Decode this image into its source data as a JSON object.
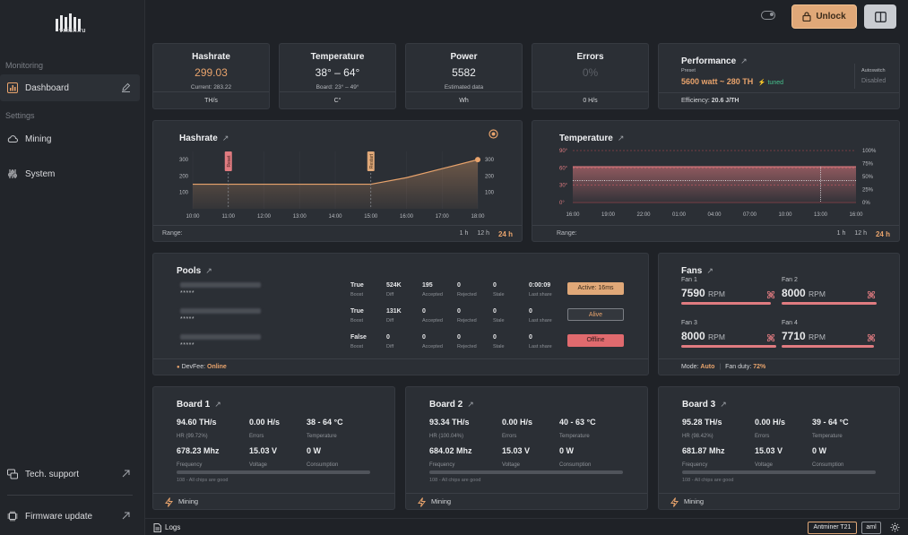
{
  "brand": {
    "name": "vnish.ru"
  },
  "sidebar": {
    "section_monitoring": "Monitoring",
    "section_settings": "Settings",
    "items": [
      {
        "label": "Dashboard",
        "icon": "chart-icon"
      },
      {
        "label": "Mining",
        "icon": "cloud-icon"
      },
      {
        "label": "System",
        "icon": "sliders-icon"
      }
    ],
    "bottom": [
      {
        "label": "Tech. support",
        "icon": "support-icon"
      },
      {
        "label": "Firmware update",
        "icon": "chip-icon"
      }
    ]
  },
  "topbar": {
    "unlock_label": "Unlock"
  },
  "stats": {
    "hashrate": {
      "title": "Hashrate",
      "value": "299.03",
      "sub": "Current: 283.22",
      "unit": "TH/s"
    },
    "temperature": {
      "title": "Temperature",
      "value": "38° – 64°",
      "sub": "Board: 23° – 49°",
      "unit": "C°"
    },
    "power": {
      "title": "Power",
      "value": "5582",
      "sub": "Estimated data",
      "unit": "Wh"
    },
    "errors": {
      "title": "Errors",
      "value": "0%",
      "unit": "0 H/s"
    }
  },
  "performance": {
    "title": "Performance",
    "preset_label": "Preset",
    "preset_value": "5600 watt ~ 280 TH",
    "tuned": "tuned",
    "autoswitch_label": "Autoswitch",
    "autoswitch_value": "Disabled",
    "efficiency_label": "Efficiency:",
    "efficiency_value": "20.6 J/TH"
  },
  "hashrate_chart": {
    "title": "Hashrate",
    "range_label": "Range:",
    "ranges": [
      "1 h",
      "12 h",
      "24 h"
    ],
    "selected_range": "24 h",
    "marker_labels": [
      "Reset",
      "Restart"
    ],
    "chart_data": {
      "type": "area",
      "x": [
        "10:00",
        "11:00",
        "12:00",
        "13:00",
        "14:00",
        "15:00",
        "16:00",
        "17:00",
        "18:00"
      ],
      "series": [
        {
          "values": [
            150,
            150,
            150,
            150,
            150,
            150,
            190,
            245,
            300
          ]
        }
      ],
      "y_ticks_left": [
        "300",
        "200",
        "100"
      ],
      "y_ticks_right": [
        "300",
        "200",
        "100"
      ],
      "ylim": [
        0,
        350
      ]
    }
  },
  "temperature_chart": {
    "title": "Temperature",
    "range_label": "Range:",
    "ranges": [
      "1 h",
      "12 h",
      "24 h"
    ],
    "selected_range": "24 h",
    "chart_data": {
      "type": "line",
      "x": [
        "16:00",
        "19:00",
        "22:00",
        "01:00",
        "04:00",
        "07:00",
        "10:00",
        "13:00",
        "16:00"
      ],
      "y_ticks_left": [
        "90°",
        "60°",
        "30°",
        "0°"
      ],
      "y_ticks_right": [
        "100%",
        "75%",
        "50%",
        "25%",
        "0%"
      ],
      "series": [
        {
          "values": [
            62,
            62,
            62,
            62,
            62,
            62,
            62,
            62,
            62
          ]
        },
        {
          "values": [
            38,
            38,
            38,
            38,
            38,
            38,
            38,
            38,
            38
          ]
        }
      ],
      "ylim": [
        0,
        90
      ]
    }
  },
  "pools": {
    "title": "Pools",
    "devfee_label": "DevFee:",
    "devfee_value": "Online",
    "col_labels": {
      "boost": "Boost",
      "diff": "Diff",
      "accepted": "Accepted",
      "rejected": "Rejected",
      "stale": "Stale",
      "last_share": "Last share"
    },
    "rows": [
      {
        "stars": "*****",
        "boost": "True",
        "diff": "524K",
        "accepted": "195",
        "rejected": "0",
        "stale": "0",
        "last_share": "0:00:09",
        "status": "Active: 16ms"
      },
      {
        "stars": "*****",
        "boost": "True",
        "diff": "131K",
        "accepted": "0",
        "rejected": "0",
        "stale": "0",
        "last_share": "0",
        "status": "Alive"
      },
      {
        "stars": "*****",
        "boost": "False",
        "diff": "0",
        "accepted": "0",
        "rejected": "0",
        "stale": "0",
        "last_share": "0",
        "status": "Offline"
      }
    ]
  },
  "fans": {
    "title": "Fans",
    "unit": "RPM",
    "items": [
      {
        "name": "Fan 1",
        "value": "7590"
      },
      {
        "name": "Fan 2",
        "value": "8000"
      },
      {
        "name": "Fan 3",
        "value": "8000"
      },
      {
        "name": "Fan 4",
        "value": "7710"
      }
    ],
    "mode_label": "Mode:",
    "mode_value": "Auto",
    "duty_label": "Fan duty:",
    "duty_value": "72%"
  },
  "boards": [
    {
      "title": "Board 1",
      "hr": "94.60 TH/s",
      "hr_label": "HR (99.72%)",
      "errors": "0.00 H/s",
      "errors_label": "Errors",
      "temp": "38 - 64 °C",
      "temp_label": "Temperature",
      "freq": "678.23 Mhz",
      "freq_label": "Frequency",
      "voltage": "15.03 V",
      "voltage_label": "Voltage",
      "consumption": "0 W",
      "consumption_label": "Consumption",
      "chips": "108 - All chips are good",
      "status": "Mining"
    },
    {
      "title": "Board 2",
      "hr": "93.34 TH/s",
      "hr_label": "HR (100.04%)",
      "errors": "0.00 H/s",
      "errors_label": "Errors",
      "temp": "40 - 63 °C",
      "temp_label": "Temperature",
      "freq": "684.02 Mhz",
      "freq_label": "Frequency",
      "voltage": "15.03 V",
      "voltage_label": "Voltage",
      "consumption": "0 W",
      "consumption_label": "Consumption",
      "chips": "108 - All chips are good",
      "status": "Mining"
    },
    {
      "title": "Board 3",
      "hr": "95.28 TH/s",
      "hr_label": "HR (98.42%)",
      "errors": "0.00 H/s",
      "errors_label": "Errors",
      "temp": "39 - 64 °C",
      "temp_label": "Temperature",
      "freq": "681.87 Mhz",
      "freq_label": "Frequency",
      "voltage": "15.03 V",
      "voltage_label": "Voltage",
      "consumption": "0 W",
      "consumption_label": "Consumption",
      "chips": "108 - All chips are good",
      "status": "Mining"
    }
  ],
  "bottombar": {
    "logs_label": "Logs",
    "model": "Antminer T21",
    "aml": "aml"
  },
  "colors": {
    "accent": "#e8a36c",
    "bar": "#e07b80",
    "bg": "#1f2227",
    "card": "#2b2f35",
    "tuned": "#46c28e"
  }
}
